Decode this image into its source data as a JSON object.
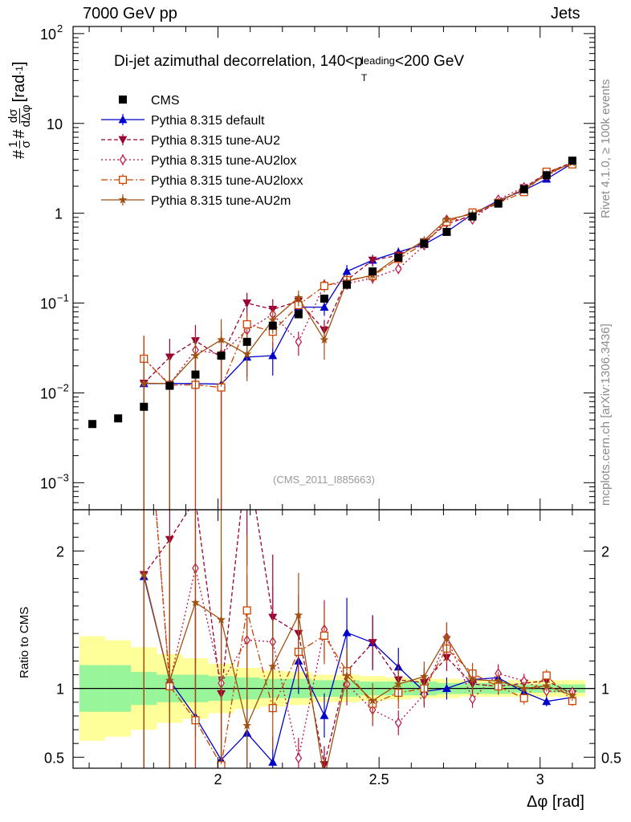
{
  "chart_data": {
    "type": "line",
    "top_left_label": "7000 GeV pp",
    "top_right_label": "Jets",
    "title_main": "Di-jet azimuthal decorrelation, 140<p",
    "title_sup": "leading",
    "title_sub": "T",
    "title_end": "<200 GeV",
    "ylabel": "#1/σ #dσ/dΔφ [rad⁻¹]",
    "ylabel_prefix": "#",
    "ylabel_frac1_num": "1",
    "ylabel_frac1_den": "σ",
    "ylabel_mid": "#",
    "ylabel_frac2_num": "dσ",
    "ylabel_frac2_den": "dΔφ",
    "ylabel_unit": "[rad",
    "ylabel_unit_sup": "-1",
    "ylabel_unit_end": "]",
    "ratio_ylabel": "Ratio to CMS",
    "xlabel": "Δφ [rad]",
    "watermark": "(CMS_2011_I885663)",
    "side_label_top": "Rivet 4.1.0, ≥ 100k events",
    "side_label_bottom": "mcplots.cern.ch [arXiv:1306.3436]",
    "xlim": [
      1.55,
      3.17
    ],
    "ylim": [
      0.0005,
      120
    ],
    "ratio_ylim": [
      0.42,
      2.3
    ],
    "x_ticks": [
      {
        "v": 2,
        "label": "2"
      },
      {
        "v": 2.5,
        "label": "2.5"
      },
      {
        "v": 3,
        "label": "3"
      }
    ],
    "y_ticks": [
      {
        "v": 0.001,
        "base": "10",
        "exp": "−3"
      },
      {
        "v": 0.01,
        "base": "10",
        "exp": "−2"
      },
      {
        "v": 0.1,
        "base": "10",
        "exp": "−1"
      },
      {
        "v": 1,
        "base": "1",
        "exp": ""
      },
      {
        "v": 10,
        "base": "10",
        "exp": ""
      },
      {
        "v": 100,
        "base": "10",
        "exp": "2"
      }
    ],
    "ratio_y_ticks": [
      {
        "v": 0.5,
        "label": "0.5"
      },
      {
        "v": 1,
        "label": "1"
      },
      {
        "v": 2,
        "label": "2"
      }
    ],
    "x": [
      1.61,
      1.69,
      1.77,
      1.85,
      1.93,
      2.01,
      2.09,
      2.17,
      2.25,
      2.33,
      2.4,
      2.48,
      2.56,
      2.64,
      2.71,
      2.79,
      2.87,
      2.95,
      3.02,
      3.1
    ],
    "data": {
      "name": "CMS",
      "values": [
        0.0045,
        0.0052,
        0.007,
        0.012,
        0.016,
        0.026,
        0.037,
        0.056,
        0.075,
        0.112,
        0.16,
        0.225,
        0.32,
        0.46,
        0.62,
        0.92,
        1.28,
        1.85,
        2.65,
        3.85
      ],
      "rel_err_inner": [
        0.17,
        0.17,
        0.12,
        0.1,
        0.1,
        0.09,
        0.08,
        0.07,
        0.07,
        0.06,
        0.06,
        0.05,
        0.05,
        0.05,
        0.04,
        0.04,
        0.04,
        0.03,
        0.03,
        0.03
      ],
      "rel_err_outer": [
        0.38,
        0.35,
        0.3,
        0.25,
        0.22,
        0.18,
        0.15,
        0.13,
        0.12,
        0.1,
        0.1,
        0.09,
        0.08,
        0.07,
        0.07,
        0.06,
        0.06,
        0.06,
        0.06,
        0.06
      ]
    },
    "series": [
      {
        "name": "Pythia 8.315 default",
        "color": "#0000cc",
        "marker": "triangle-up",
        "dash": "",
        "values": [
          null,
          null,
          0.0127,
          0.0127,
          0.0127,
          0.0125,
          0.025,
          0.026,
          0.09,
          0.09,
          0.225,
          0.3,
          0.37,
          0.45,
          0.62,
          0.98,
          1.38,
          1.8,
          2.4,
          3.6
        ],
        "rel_err": [
          null,
          null,
          1.0,
          1.0,
          1.0,
          1.0,
          0.4,
          0.4,
          0.2,
          0.2,
          0.18,
          0.15,
          0.12,
          0.1,
          0.08,
          0.07,
          0.06,
          0.05,
          0.04,
          0.04
        ]
      },
      {
        "name": "Pythia 8.315 tune-AU2",
        "color": "#990033",
        "marker": "triangle-down",
        "dash": "5,3",
        "values": [
          null,
          null,
          0.0128,
          0.025,
          0.038,
          0.025,
          0.1,
          0.085,
          0.105,
          0.05,
          0.18,
          0.3,
          0.34,
          0.48,
          0.76,
          0.95,
          1.3,
          1.92,
          2.8,
          3.7
        ],
        "rel_err": [
          null,
          null,
          1.0,
          0.6,
          0.5,
          1.0,
          0.3,
          0.3,
          0.2,
          0.3,
          0.15,
          0.14,
          0.12,
          0.1,
          0.08,
          0.07,
          0.06,
          0.05,
          0.04,
          0.04
        ]
      },
      {
        "name": "Pythia 8.315 tune-AU2lox",
        "color": "#bb1144",
        "marker": "diamond-open",
        "dash": "2,3",
        "values": [
          null,
          null,
          0.024,
          0.0125,
          0.03,
          0.027,
          0.05,
          0.075,
          0.037,
          0.16,
          0.165,
          0.19,
          0.24,
          0.44,
          0.85,
          0.85,
          1.42,
          1.95,
          2.6,
          3.75
        ],
        "rel_err": [
          null,
          null,
          0.8,
          1.0,
          0.6,
          0.8,
          0.35,
          0.3,
          0.3,
          0.15,
          0.15,
          0.14,
          0.12,
          0.1,
          0.08,
          0.07,
          0.06,
          0.05,
          0.04,
          0.04
        ]
      },
      {
        "name": "Pythia 8.315 tune-AU2loxx",
        "color": "#cc4400",
        "marker": "square-open",
        "dash": "8,3,2,3",
        "values": [
          null,
          null,
          0.024,
          0.0122,
          0.0123,
          0.0115,
          0.058,
          0.048,
          0.095,
          0.155,
          0.18,
          0.2,
          0.31,
          0.46,
          0.8,
          1.02,
          1.3,
          1.72,
          2.9,
          3.5
        ],
        "rel_err": [
          null,
          null,
          0.8,
          1.0,
          1.0,
          1.0,
          0.35,
          0.35,
          0.2,
          0.15,
          0.15,
          0.14,
          0.12,
          0.1,
          0.08,
          0.07,
          0.06,
          0.05,
          0.04,
          0.04
        ]
      },
      {
        "name": "Pythia 8.315 tune-AU2m",
        "color": "#a05010",
        "marker": "star",
        "dash": "",
        "values": [
          null,
          null,
          0.0128,
          0.0127,
          0.026,
          0.039,
          0.027,
          0.065,
          0.115,
          0.039,
          0.175,
          0.205,
          0.33,
          0.5,
          0.85,
          0.98,
          1.35,
          1.85,
          2.7,
          3.65
        ],
        "rel_err": [
          null,
          null,
          1.0,
          1.0,
          0.6,
          0.7,
          0.5,
          0.3,
          0.2,
          0.4,
          0.15,
          0.14,
          0.12,
          0.1,
          0.08,
          0.07,
          0.06,
          0.05,
          0.04,
          0.04
        ]
      }
    ]
  }
}
